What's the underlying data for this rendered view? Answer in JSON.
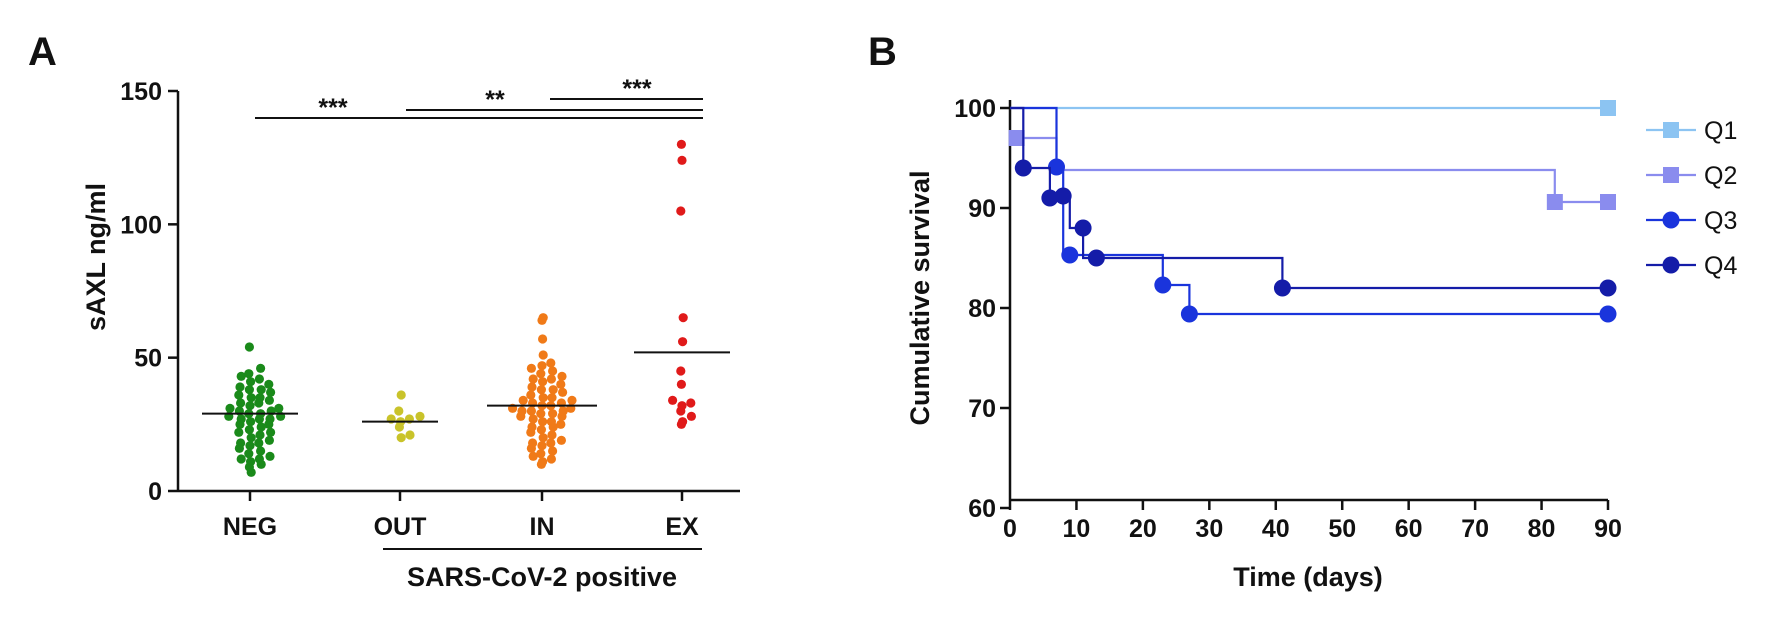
{
  "panels": {
    "a": {
      "letter": "A"
    },
    "b": {
      "letter": "B"
    }
  },
  "chart_data": [
    {
      "type": "scatter",
      "subtype": "dot-plot",
      "title": "",
      "ylabel": "sAXL ng/ml",
      "xlabel": "SARS-CoV-2 positive",
      "ylim": [
        0,
        150
      ],
      "yticks": [
        "0",
        "50",
        "100",
        "150"
      ],
      "categories": [
        "NEG",
        "OUT",
        "IN",
        "EX"
      ],
      "group_label": "SARS-CoV-2 positive",
      "grouped_categories": [
        "OUT",
        "IN",
        "EX"
      ],
      "colors": [
        "#1a8a1a",
        "#c9c32a",
        "#f07a18",
        "#e01a1a"
      ],
      "means": [
        29,
        26,
        32,
        52
      ],
      "points": [
        [
          54,
          44,
          43,
          42,
          41,
          40,
          39,
          38,
          37,
          36,
          35,
          35,
          34,
          33,
          32,
          31,
          31,
          30,
          30,
          29,
          29,
          28,
          28,
          27,
          27,
          26,
          25,
          25,
          24,
          23,
          22,
          21,
          20,
          19,
          18,
          17,
          16,
          15,
          14,
          13,
          12,
          11,
          10,
          9,
          7,
          46,
          38,
          33,
          27,
          22,
          18,
          12
        ],
        [
          36,
          30,
          28,
          27,
          27,
          26,
          24,
          21,
          20
        ],
        [
          65,
          64,
          57,
          51,
          48,
          47,
          46,
          45,
          44,
          43,
          42,
          41,
          40,
          39,
          38,
          37,
          36,
          35,
          35,
          34,
          34,
          33,
          33,
          32,
          32,
          31,
          31,
          30,
          30,
          29,
          29,
          28,
          28,
          27,
          26,
          26,
          25,
          24,
          23,
          22,
          21,
          20,
          19,
          18,
          17,
          16,
          15,
          14,
          13,
          12,
          11,
          10,
          42,
          38,
          30,
          24,
          18
        ],
        [
          130,
          124,
          105,
          65,
          56,
          45,
          40,
          34,
          32,
          30,
          28,
          26,
          25,
          33
        ]
      ],
      "comparisons": [
        {
          "from": "NEG",
          "to": "EX",
          "label": "***",
          "y": 140
        },
        {
          "from": "OUT",
          "to": "EX",
          "label": "**",
          "y": 143
        },
        {
          "from": "IN",
          "to": "EX",
          "label": "***",
          "y": 148
        }
      ]
    },
    {
      "type": "line",
      "subtype": "step (Kaplan-Meier)",
      "title": "",
      "xlabel": "Time (days)",
      "ylabel": "Cumulative survival",
      "xlim": [
        0,
        90
      ],
      "ylim": [
        60,
        100
      ],
      "xticks": [
        "0",
        "10",
        "20",
        "30",
        "40",
        "50",
        "60",
        "70",
        "80",
        "90"
      ],
      "yticks": [
        "60",
        "70",
        "80",
        "90",
        "100"
      ],
      "series": [
        {
          "name": "Q1",
          "color": "#8cc4f2",
          "marker": "square",
          "steps": [
            [
              0,
              100
            ],
            [
              90,
              100
            ]
          ],
          "markers": [
            [
              90,
              100
            ]
          ]
        },
        {
          "name": "Q2",
          "color": "#8a8cee",
          "marker": "square",
          "steps": [
            [
              0,
              97
            ],
            [
              7,
              97
            ],
            [
              7,
              93.8
            ],
            [
              82,
              93.8
            ],
            [
              82,
              90.6
            ],
            [
              90,
              90.6
            ]
          ],
          "markers": [
            [
              1,
              97
            ],
            [
              82,
              90.6
            ],
            [
              90,
              90.6
            ]
          ]
        },
        {
          "name": "Q3",
          "color": "#1a34dc",
          "marker": "circle",
          "steps": [
            [
              0,
              100
            ],
            [
              7,
              100
            ],
            [
              7,
              94.1
            ],
            [
              8,
              94.1
            ],
            [
              8,
              85.3
            ],
            [
              23,
              85.3
            ],
            [
              23,
              82.3
            ],
            [
              27,
              82.3
            ],
            [
              27,
              79.4
            ],
            [
              90,
              79.4
            ]
          ],
          "markers": [
            [
              7,
              94.1
            ],
            [
              9,
              85.3
            ],
            [
              23,
              82.3
            ],
            [
              27,
              79.4
            ],
            [
              90,
              79.4
            ]
          ]
        },
        {
          "name": "Q4",
          "color": "#141ca8",
          "marker": "circle",
          "steps": [
            [
              0,
              100
            ],
            [
              2,
              100
            ],
            [
              2,
              94
            ],
            [
              6,
              94
            ],
            [
              6,
              91
            ],
            [
              9,
              91
            ],
            [
              9,
              88
            ],
            [
              11,
              88
            ],
            [
              11,
              85
            ],
            [
              41,
              85
            ],
            [
              41,
              82
            ],
            [
              90,
              82
            ]
          ],
          "markers": [
            [
              2,
              94
            ],
            [
              6,
              91
            ],
            [
              8,
              91.2
            ],
            [
              11,
              88
            ],
            [
              13,
              85
            ],
            [
              41,
              82
            ],
            [
              90,
              82
            ]
          ]
        }
      ]
    }
  ]
}
